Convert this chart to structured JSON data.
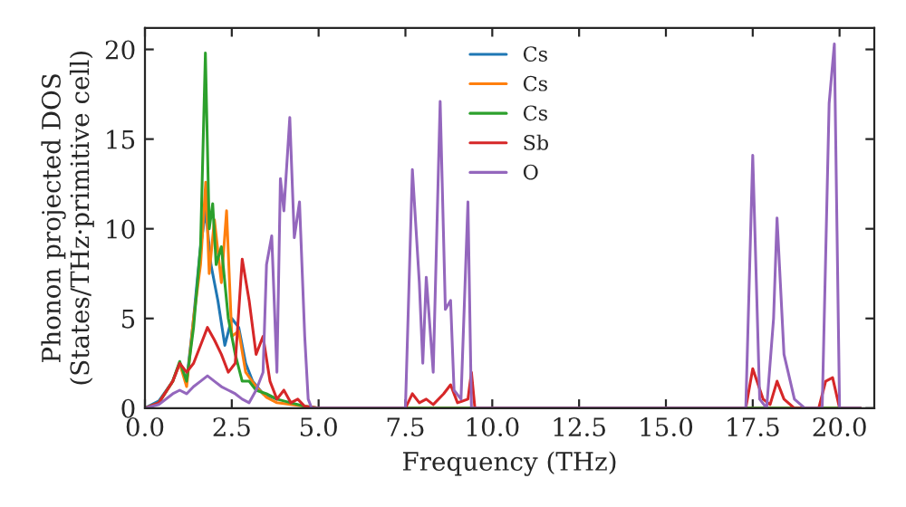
{
  "chart_data": {
    "type": "line",
    "xlabel": "Frequency (THz)",
    "ylabel": "Phonon projected DOS\n(States/THz·primitive cell)",
    "xlim": [
      0,
      21
    ],
    "ylim": [
      0,
      21.2
    ],
    "xticks": [
      {
        "value": 0,
        "label": "0.0"
      },
      {
        "value": 2.5,
        "label": "2.5"
      },
      {
        "value": 5,
        "label": "5.0"
      },
      {
        "value": 7.5,
        "label": "7.5"
      },
      {
        "value": 10,
        "label": "10.0"
      },
      {
        "value": 12.5,
        "label": "12.5"
      },
      {
        "value": 15,
        "label": "15.0"
      },
      {
        "value": 17.5,
        "label": "17.5"
      },
      {
        "value": 20,
        "label": "20.0"
      }
    ],
    "yticks": [
      0,
      5,
      10,
      15,
      20
    ],
    "legend": "top",
    "grid": false,
    "series": [
      {
        "name": "Cs",
        "color": "#1f77b4",
        "x": [
          0,
          0.4,
          0.8,
          1.0,
          1.2,
          1.4,
          1.6,
          1.75,
          1.9,
          2.1,
          2.3,
          2.5,
          2.7,
          2.9,
          3.1,
          3.4,
          3.8
        ],
        "values": [
          0,
          0.4,
          1.5,
          2.5,
          1.5,
          5,
          9,
          11,
          8,
          6,
          3.5,
          5,
          4.5,
          2.5,
          1.5,
          0.8,
          0.5
        ]
      },
      {
        "name": "Cs",
        "color": "#ff7f0e",
        "x": [
          0,
          0.4,
          0.8,
          1.0,
          1.2,
          1.4,
          1.6,
          1.75,
          1.85,
          2.0,
          2.2,
          2.35,
          2.5,
          2.7,
          2.9,
          3.2,
          3.5,
          3.8,
          4.2,
          4.6,
          5.0,
          20.6
        ],
        "values": [
          0,
          0.3,
          1.5,
          2.5,
          1.2,
          5,
          8,
          12.6,
          7.5,
          10.5,
          7,
          11,
          4,
          4.3,
          2,
          1.2,
          0.6,
          0.3,
          0.2,
          0.1,
          0,
          0
        ]
      },
      {
        "name": "Cs",
        "color": "#2ca02c",
        "x": [
          0,
          0.4,
          0.8,
          1.0,
          1.2,
          1.4,
          1.6,
          1.74,
          1.85,
          1.95,
          2.05,
          2.2,
          2.4,
          2.6,
          2.8,
          3.0,
          3.2,
          3.5,
          3.8,
          4.2,
          4.6,
          5.0,
          20.6
        ],
        "values": [
          0,
          0.3,
          1.5,
          2.6,
          1.5,
          4.5,
          9,
          19.8,
          10,
          11.4,
          8,
          9,
          5,
          3,
          1.5,
          1.5,
          1,
          0.8,
          0.5,
          0.3,
          0.1,
          0,
          0
        ]
      },
      {
        "name": "Sb",
        "color": "#d62728",
        "x": [
          0,
          0.4,
          0.8,
          1.0,
          1.2,
          1.4,
          1.6,
          1.8,
          2.0,
          2.2,
          2.4,
          2.6,
          2.8,
          3.0,
          3.2,
          3.4,
          3.6,
          3.8,
          4.0,
          4.2,
          4.4,
          4.6,
          5.0,
          7.5,
          7.7,
          7.9,
          8.1,
          8.3,
          8.6,
          8.8,
          9.0,
          9.3,
          9.4,
          9.5,
          17.3,
          17.5,
          17.8,
          18.0,
          18.2,
          18.4,
          18.7,
          19.4,
          19.6,
          19.8,
          20.0,
          20.6
        ],
        "values": [
          0,
          0.3,
          1.5,
          2.5,
          2,
          2.5,
          3.5,
          4.5,
          3.8,
          3,
          2,
          2.5,
          8.3,
          6,
          3,
          4,
          1.5,
          0.5,
          1,
          0.3,
          0.5,
          0.1,
          0,
          0,
          0.8,
          0.3,
          0.5,
          0.2,
          0.8,
          1.3,
          0.3,
          0.5,
          2,
          0,
          0,
          2.2,
          0.5,
          0.2,
          1.5,
          0.5,
          0,
          0,
          1.5,
          1.7,
          0,
          0
        ]
      },
      {
        "name": "O",
        "color": "#9467bd",
        "x": [
          0,
          0.4,
          0.8,
          1.0,
          1.2,
          1.4,
          1.6,
          1.8,
          2.0,
          2.2,
          2.4,
          2.6,
          2.8,
          3.0,
          3.2,
          3.4,
          3.5,
          3.65,
          3.8,
          3.9,
          4.0,
          4.17,
          4.3,
          4.45,
          4.6,
          4.7,
          4.8,
          7.5,
          7.7,
          7.9,
          8.0,
          8.1,
          8.3,
          8.5,
          8.65,
          8.8,
          8.9,
          9.1,
          9.3,
          9.4,
          17.3,
          17.5,
          17.7,
          17.9,
          18.1,
          18.2,
          18.4,
          18.7,
          19.0,
          19.5,
          19.7,
          19.85,
          20.0,
          20.6
        ],
        "values": [
          0,
          0.2,
          0.8,
          1,
          0.8,
          1.2,
          1.5,
          1.8,
          1.5,
          1.2,
          1,
          0.8,
          0.5,
          0.3,
          1,
          2,
          8,
          9.6,
          2,
          12.8,
          11,
          16.2,
          9.5,
          11.5,
          4,
          0.5,
          0,
          0,
          13.3,
          7,
          2.5,
          7.3,
          2,
          17.1,
          5.5,
          6,
          1,
          0.5,
          11.5,
          0,
          0,
          14.1,
          0.5,
          0,
          5,
          10.6,
          3,
          0.5,
          0,
          0,
          17,
          20.3,
          0,
          0
        ]
      }
    ]
  }
}
